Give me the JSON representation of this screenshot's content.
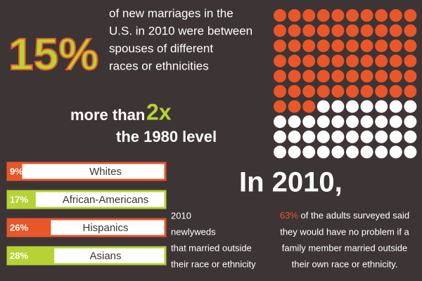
{
  "headline": {
    "figure": "15%",
    "lines": [
      "of new marriages in the",
      "U.S. in 2010 were between",
      "spouses of different",
      "races or ethnicities"
    ]
  },
  "comparison": {
    "prefix": "more than",
    "multiplier": "2x",
    "suffix": "the 1980 level"
  },
  "waffle": {
    "type": "waffle",
    "values": [
      63,
      37
    ],
    "colors": [
      "#e8562a",
      "#ffffff"
    ]
  },
  "groups": {
    "type": "bar",
    "categories": [
      "Whites",
      "African-Americans",
      "Hispanics",
      "Asians"
    ],
    "values": [
      9,
      17,
      26,
      28
    ],
    "value_labels": [
      "9%",
      "17%",
      "26%",
      "28%"
    ],
    "colors": [
      "#e8562a",
      "#b5d334",
      "#e8562a",
      "#b5d334"
    ],
    "caption": [
      "2010",
      "newlyweds",
      "that married outside",
      "their race or ethnicity"
    ]
  },
  "survey": {
    "heading": "In 2010,",
    "figure": "63%",
    "lines": [
      "of the adults surveyed said",
      "they would have no problem if a",
      "family member married outside",
      "their own race or ethnicity."
    ]
  }
}
